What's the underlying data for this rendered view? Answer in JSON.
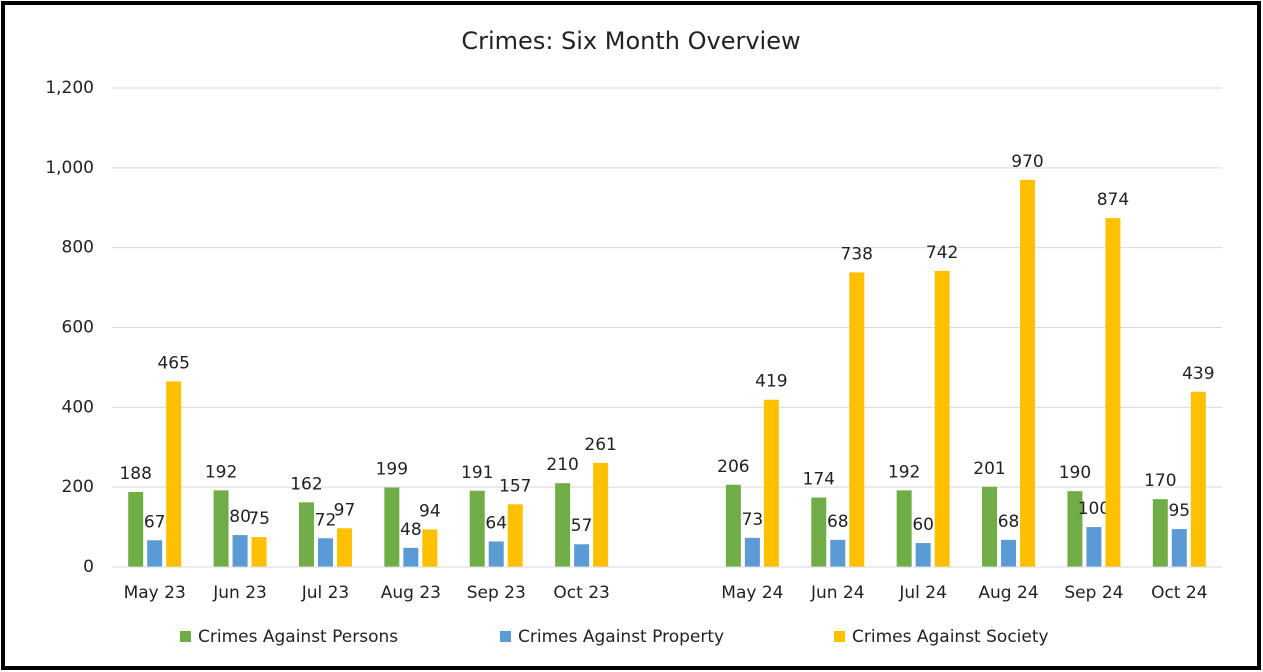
{
  "chart_data": {
    "type": "bar",
    "title": "Crimes: Six Month Overview",
    "categories": [
      "May 23",
      "Jun 23",
      "Jul 23",
      "Aug 23",
      "Sep 23",
      "Oct 23",
      null,
      "May 24",
      "Jun 24",
      "Jul 24",
      "Aug 24",
      "Sep 24",
      "Oct 24"
    ],
    "series": [
      {
        "name": "Crimes Against Persons",
        "color": "#70ad47",
        "values": [
          188,
          192,
          162,
          199,
          191,
          210,
          null,
          206,
          174,
          192,
          201,
          190,
          170
        ]
      },
      {
        "name": "Crimes Against Property",
        "color": "#5b9bd5",
        "values": [
          67,
          80,
          72,
          48,
          64,
          57,
          null,
          73,
          68,
          60,
          68,
          100,
          95
        ]
      },
      {
        "name": "Crimes Against Society",
        "color": "#ffc000",
        "values": [
          465,
          75,
          97,
          94,
          157,
          261,
          null,
          419,
          738,
          742,
          970,
          874,
          439
        ]
      }
    ],
    "ylim": [
      0,
      1200
    ],
    "yticks": [
      0,
      200,
      400,
      600,
      800,
      {
        "value": 1000,
        "label": "1,000"
      },
      {
        "value": 1200,
        "label": "1,200"
      }
    ],
    "grid": true,
    "legend": "bottom"
  }
}
